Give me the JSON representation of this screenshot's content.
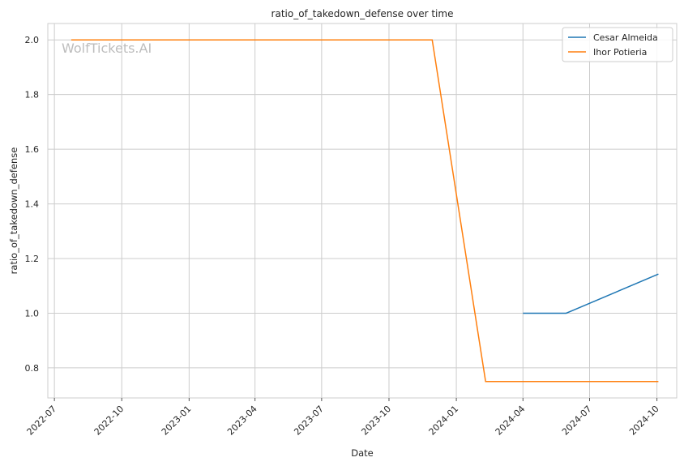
{
  "chart_data": {
    "type": "line",
    "title": "ratio_of_takedown_defense over time",
    "xlabel": "Date",
    "ylabel": "ratio_of_takedown_defense",
    "watermark": "WolfTickets.AI",
    "x_ticks": [
      "2022-07",
      "2022-10",
      "2023-01",
      "2023-04",
      "2023-07",
      "2023-10",
      "2024-01",
      "2024-04",
      "2024-07",
      "2024-10"
    ],
    "y_ticks": [
      "0.8",
      "1.0",
      "1.2",
      "1.4",
      "1.6",
      "1.8",
      "2.0"
    ],
    "ylim": [
      0.69,
      2.06
    ],
    "xlim": [
      "2022-06-22",
      "2024-10-28"
    ],
    "grid": true,
    "legend_position": "top-right",
    "colors": {
      "Cesar Almeida": "#1f77b4",
      "Ihor Potieria": "#ff7f0e"
    },
    "series": [
      {
        "name": "Cesar Almeida",
        "x": [
          "2024-04-01",
          "2024-05-30",
          "2024-10-03"
        ],
        "y": [
          1.0,
          1.0,
          1.143
        ]
      },
      {
        "name": "Ihor Potieria",
        "x": [
          "2022-07-24",
          "2023-11-29",
          "2024-02-10",
          "2024-10-03"
        ],
        "y": [
          2.0,
          2.0,
          0.75,
          0.75
        ]
      }
    ]
  }
}
